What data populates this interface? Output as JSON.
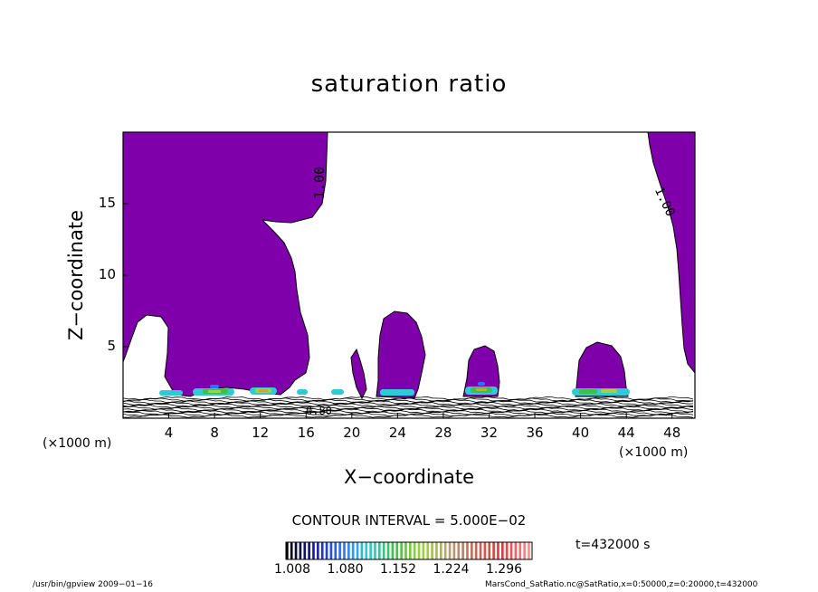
{
  "chart_data": {
    "type": "contour",
    "title": "saturation ratio",
    "xlabel": "X−coordinate",
    "ylabel": "Z−coordinate",
    "x_unit_left": "(×1000 m)",
    "x_unit_right": "(×1000 m)",
    "xlim": [
      0,
      50
    ],
    "ylim": [
      0,
      20
    ],
    "xticks": [
      4,
      8,
      12,
      16,
      20,
      24,
      28,
      32,
      36,
      40,
      44,
      48
    ],
    "yticks": [
      5,
      10,
      15
    ],
    "contour_labels": [
      "1.00",
      "1.00",
      "0.80"
    ],
    "contour_interval": "CONTOUR INTERVAL = 5.000E−02",
    "colorbar": {
      "tick_labels": [
        "1.008",
        "1.080",
        "1.152",
        "1.224",
        "1.296"
      ],
      "colors": [
        "#000000",
        "#1a1aa0",
        "#2f6fff",
        "#2ecbd6",
        "#3fbf4a",
        "#9fd43a",
        "#b5a27a",
        "#c46a5a",
        "#e03a3a",
        "#ff8c8c"
      ]
    },
    "time": "t=432000 s",
    "shaded_color": "#7f00aa"
  },
  "footer": {
    "left": "/usr/bin/gpview  2009−01−16",
    "right": "MarsCond_SatRatio.nc@SatRatio,x=0:50000,z=0:20000,t=432000"
  }
}
